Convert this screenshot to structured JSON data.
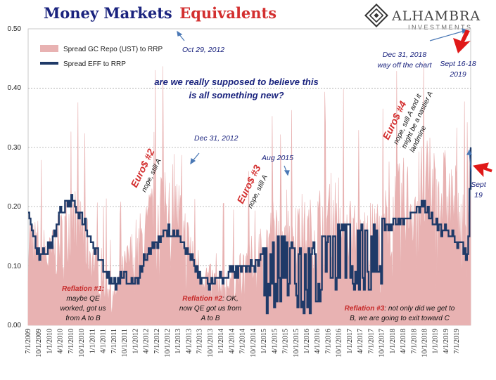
{
  "title": {
    "part1": "Money Markets",
    "part2": "Equivalents"
  },
  "logo": {
    "name": "ALHAMBRA",
    "sub": "INVESTMENTS"
  },
  "colors": {
    "fill": "#e8b2b2",
    "line": "#1f3a68",
    "accent": "#d32f2f",
    "navy": "#1a237e"
  },
  "chart_data": {
    "type": "area",
    "ylim": [
      0,
      0.5
    ],
    "yticks": [
      "0.50",
      "0.40",
      "0.30",
      "0.20",
      "0.10",
      "0.00"
    ],
    "xticks": [
      "7/1/2009",
      "10/1/2009",
      "1/1/2010",
      "4/1/2010",
      "7/1/2010",
      "10/1/2010",
      "1/1/2011",
      "4/1/2011",
      "7/1/2011",
      "10/1/2011",
      "1/1/2012",
      "4/1/2012",
      "7/1/2012",
      "10/1/2012",
      "1/1/2013",
      "4/1/2013",
      "7/1/2013",
      "10/1/2013",
      "1/1/2014",
      "4/1/2014",
      "7/1/2014",
      "10/1/2014",
      "1/1/2015",
      "4/1/2015",
      "7/1/2015",
      "10/1/2015",
      "1/1/2016",
      "4/1/2016",
      "7/1/2016",
      "10/1/2016",
      "1/1/2017",
      "4/1/2017",
      "7/1/2017",
      "10/1/2017",
      "1/1/2018",
      "4/1/2018",
      "7/1/2018",
      "10/1/2018",
      "1/1/2019",
      "4/1/2019",
      "7/1/2019"
    ],
    "legend": [
      "Spread GC Repo (UST) to RRP",
      "Spread EFF to RRP"
    ],
    "x_quarters": [
      0,
      1,
      2,
      3,
      4,
      5,
      6,
      7,
      8,
      9,
      10,
      11,
      12,
      13,
      14,
      15,
      16,
      17,
      18,
      19,
      20,
      21,
      22,
      23,
      24,
      25,
      26,
      27,
      28,
      29,
      30,
      31,
      32,
      33,
      34,
      35,
      36,
      37,
      38,
      39,
      40,
      41,
      41.3
    ],
    "gc_repo_typical": [
      0.17,
      0.14,
      0.12,
      0.15,
      0.19,
      0.17,
      0.12,
      0.07,
      0.05,
      0.1,
      0.14,
      0.16,
      0.22,
      0.24,
      0.2,
      0.14,
      0.1,
      0.08,
      0.07,
      0.08,
      0.1,
      0.12,
      0.14,
      0.17,
      0.2,
      0.19,
      0.16,
      0.18,
      0.2,
      0.2,
      0.18,
      0.16,
      0.16,
      0.17,
      0.2,
      0.22,
      0.22,
      0.24,
      0.25,
      0.23,
      0.21,
      0.2,
      0.3
    ],
    "eff_rrp": [
      0.18,
      0.12,
      0.13,
      0.19,
      0.21,
      0.18,
      0.14,
      0.1,
      0.07,
      0.08,
      0.07,
      0.12,
      0.14,
      0.16,
      0.15,
      0.12,
      0.08,
      0.07,
      0.08,
      0.09,
      0.09,
      0.1,
      0.12,
      0.14,
      0.14,
      0.13,
      0.12,
      0.14,
      0.15,
      0.16,
      0.16,
      0.16,
      0.16,
      0.17,
      0.17,
      0.18,
      0.19,
      0.2,
      0.17,
      0.16,
      0.14,
      0.12,
      0.3
    ]
  },
  "annotations": {
    "oct2012": "Oct 29, 2012",
    "dec2012": "Dec 31, 2012",
    "aug2015": "Aug 2015",
    "dec2018_1": "Dec 31, 2018",
    "dec2018_2": "way off the chart",
    "sept1618_1": "Sept 16-18",
    "sept1618_2": "2019",
    "sept19_1": "Sept",
    "sept19_2": "19",
    "question_1": "are we really supposed to believe this",
    "question_2": "is all something new?",
    "euro2": "Euro$ #2",
    "euro2_sub": "nope, still A",
    "euro3": "Euro$ #3",
    "euro3_sub": "nope, still A",
    "euro4": "Euro$ #4",
    "euro4_sub1": "nope, still A and it",
    "euro4_sub2": "might be a nastier A",
    "euro4_sub3": "landmine",
    "refl1_head": "Reflation #1",
    "refl1_l1": "maybe QE",
    "refl1_l2": "worked, got us",
    "refl1_l3": "from A to B",
    "refl2_head": "Reflation #2",
    "refl2_rest": ": OK,",
    "refl2_l2": "now QE got us from",
    "refl2_l3": "A to B",
    "refl3_head": "Reflation #3",
    "refl3_rest": ": not only did we get to",
    "refl3_l2": "B, we are going to exit toward C"
  }
}
